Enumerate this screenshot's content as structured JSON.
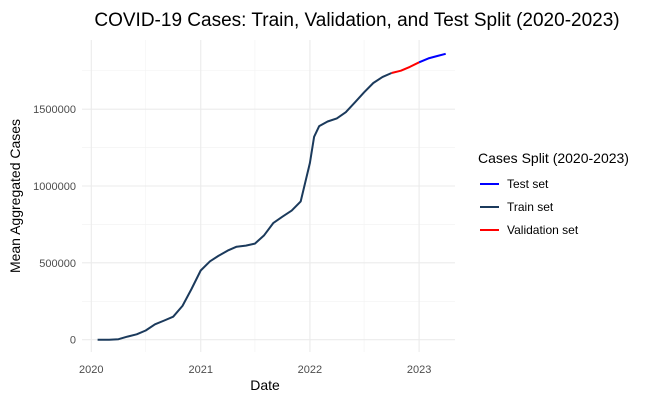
{
  "chart_data": {
    "type": "line",
    "title": "COVID-19 Cases: Train, Validation, and Test Split (2020-2023)",
    "xlabel": "Date",
    "ylabel": "Mean Aggregated Cases",
    "x_ticks": [
      "2020",
      "2021",
      "2022",
      "2023"
    ],
    "y_ticks": [
      {
        "value": 0,
        "label": "0"
      },
      {
        "value": 500000,
        "label": "500000"
      },
      {
        "value": 1000000,
        "label": "1000000"
      },
      {
        "value": 1500000,
        "label": "1500000"
      }
    ],
    "xlim": [
      "2019-12-01",
      "2023-05-01"
    ],
    "ylim": [
      -80000,
      1950000
    ],
    "grid": true,
    "legend": {
      "title": "Cases Split (2020-2023)",
      "placement": "right",
      "entries": [
        {
          "name": "Test set",
          "color": "#0000ff"
        },
        {
          "name": "Train set",
          "color": "#1b3a5c"
        },
        {
          "name": "Validation set",
          "color": "#ff0000"
        }
      ]
    },
    "series": [
      {
        "name": "Train set",
        "color": "#1b3a5c",
        "points": [
          [
            "2020-01-22",
            0
          ],
          [
            "2020-03-01",
            0
          ],
          [
            "2020-04-01",
            3000
          ],
          [
            "2020-05-01",
            20000
          ],
          [
            "2020-06-01",
            35000
          ],
          [
            "2020-07-01",
            60000
          ],
          [
            "2020-08-01",
            100000
          ],
          [
            "2020-09-01",
            125000
          ],
          [
            "2020-10-01",
            150000
          ],
          [
            "2020-11-01",
            220000
          ],
          [
            "2020-12-01",
            330000
          ],
          [
            "2021-01-01",
            450000
          ],
          [
            "2021-02-01",
            510000
          ],
          [
            "2021-03-01",
            545000
          ],
          [
            "2021-04-01",
            580000
          ],
          [
            "2021-05-01",
            605000
          ],
          [
            "2021-06-01",
            612000
          ],
          [
            "2021-07-01",
            625000
          ],
          [
            "2021-08-01",
            680000
          ],
          [
            "2021-09-01",
            760000
          ],
          [
            "2021-10-01",
            800000
          ],
          [
            "2021-11-01",
            840000
          ],
          [
            "2021-12-01",
            900000
          ],
          [
            "2022-01-01",
            1150000
          ],
          [
            "2022-01-15",
            1320000
          ],
          [
            "2022-02-01",
            1390000
          ],
          [
            "2022-03-01",
            1420000
          ],
          [
            "2022-04-01",
            1440000
          ],
          [
            "2022-05-01",
            1480000
          ],
          [
            "2022-06-01",
            1545000
          ],
          [
            "2022-07-01",
            1610000
          ],
          [
            "2022-08-01",
            1670000
          ],
          [
            "2022-09-01",
            1710000
          ],
          [
            "2022-10-01",
            1735000
          ]
        ]
      },
      {
        "name": "Validation set",
        "color": "#ff0000",
        "points": [
          [
            "2022-10-01",
            1735000
          ],
          [
            "2022-11-01",
            1750000
          ],
          [
            "2022-12-01",
            1775000
          ],
          [
            "2023-01-01",
            1805000
          ]
        ]
      },
      {
        "name": "Test set",
        "color": "#0000ff",
        "points": [
          [
            "2023-01-01",
            1805000
          ],
          [
            "2023-02-01",
            1830000
          ],
          [
            "2023-03-01",
            1845000
          ],
          [
            "2023-03-31",
            1860000
          ]
        ]
      }
    ]
  }
}
